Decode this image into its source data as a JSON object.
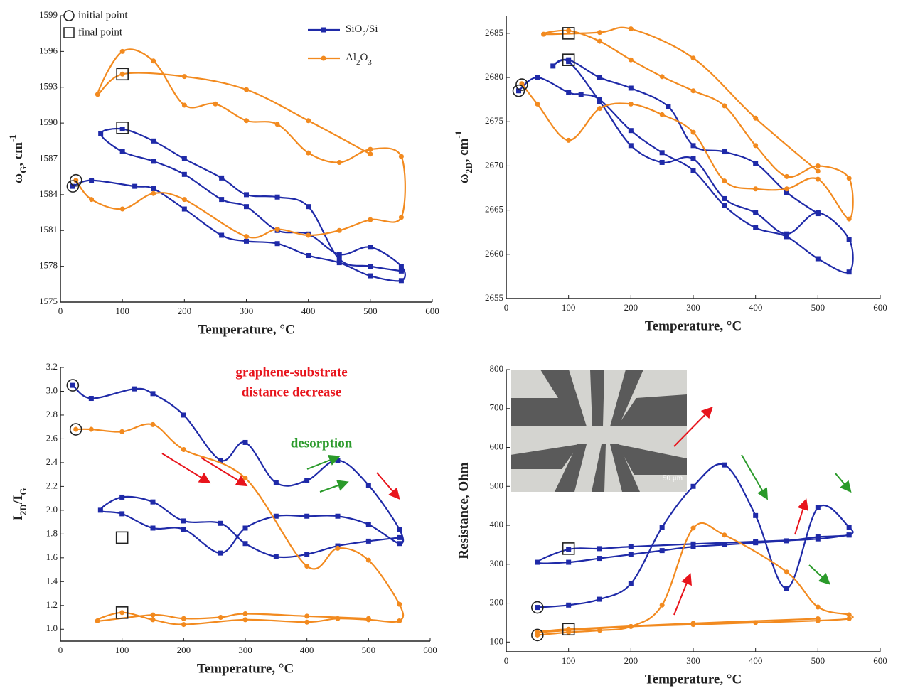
{
  "chart_data": [
    {
      "type": "line",
      "xlabel": "Temperature, °C",
      "ylabel": [
        "ω",
        "G",
        ", cm",
        "-1"
      ],
      "xlim": [
        0,
        600
      ],
      "xticks": [
        0,
        100,
        200,
        300,
        400,
        500,
        600
      ],
      "ylim": [
        1575,
        1599
      ],
      "yticks": [
        1575,
        1578,
        1581,
        1584,
        1587,
        1590,
        1593,
        1596,
        1599
      ],
      "initial_label": "initial point",
      "final_label": "final point",
      "initial_points": [
        {
          "x": 20,
          "y": 1584.7
        },
        {
          "x": 25,
          "y": 1585.2
        }
      ],
      "final_points": [
        {
          "x": 100,
          "y": 1589.6
        },
        {
          "x": 100,
          "y": 1594.1
        }
      ],
      "series": [
        {
          "name": "SiO2/Si",
          "color": "#1f2aa8",
          "x": [
            20,
            50,
            120,
            150,
            200,
            260,
            300,
            350,
            400,
            450,
            500,
            550,
            550,
            500,
            450,
            400,
            350,
            300,
            260,
            200,
            150,
            100,
            65,
            100,
            150,
            200,
            260,
            300,
            350,
            400,
            450,
            500,
            550
          ],
          "values": [
            1584.7,
            1585.2,
            1584.7,
            1584.5,
            1582.8,
            1580.6,
            1580.1,
            1579.9,
            1578.9,
            1578.3,
            1577.2,
            1576.8,
            1578,
            1579.6,
            1579,
            1580.7,
            1581,
            1583,
            1583.6,
            1585.7,
            1586.8,
            1587.6,
            1589.1,
            1589.5,
            1588.5,
            1587,
            1585.4,
            1584,
            1583.8,
            1583,
            1578.6,
            1578,
            1577.6
          ]
        },
        {
          "name": "Al2O3",
          "color": "#f28a1f",
          "x": [
            25,
            50,
            100,
            150,
            200,
            300,
            350,
            400,
            450,
            500,
            550,
            550,
            500,
            450,
            400,
            350,
            300,
            250,
            200,
            150,
            100,
            60,
            100,
            200,
            300,
            400,
            500
          ],
          "values": [
            1585.2,
            1583.6,
            1582.8,
            1584.1,
            1583.6,
            1580.5,
            1581.1,
            1580.6,
            1581,
            1581.9,
            1582.1,
            1587.2,
            1587.8,
            1586.7,
            1587.5,
            1589.9,
            1590.2,
            1591.6,
            1591.5,
            1595.2,
            1596,
            1592.4,
            1594.1,
            1593.9,
            1592.8,
            1590.2,
            1587.4
          ]
        }
      ]
    },
    {
      "type": "line",
      "xlabel": "Temperature, °C",
      "ylabel": [
        "ω",
        "2D",
        ", cm",
        "-1"
      ],
      "xlim": [
        0,
        600
      ],
      "xticks": [
        0,
        100,
        200,
        300,
        400,
        500,
        600
      ],
      "ylim": [
        2655,
        2687
      ],
      "yticks": [
        2655,
        2660,
        2665,
        2670,
        2675,
        2680,
        2685
      ],
      "initial_points": [
        {
          "x": 20,
          "y": 2678.5
        },
        {
          "x": 25,
          "y": 2679.2
        }
      ],
      "final_points": [
        {
          "x": 100,
          "y": 2682
        },
        {
          "x": 100,
          "y": 2685
        }
      ],
      "series": [
        {
          "name": "SiO2/Si",
          "color": "#1f2aa8",
          "x": [
            20,
            50,
            100,
            120,
            150,
            200,
            250,
            300,
            350,
            400,
            450,
            500,
            550,
            550,
            500,
            450,
            400,
            350,
            300,
            250,
            200,
            150,
            100,
            75,
            100,
            150,
            200,
            260,
            300,
            350,
            400,
            450,
            500
          ],
          "values": [
            2678.5,
            2680,
            2678.3,
            2678.1,
            2677.5,
            2674,
            2671.5,
            2669.5,
            2665.5,
            2663,
            2662,
            2659.5,
            2658,
            2661.7,
            2664.7,
            2662.3,
            2664.7,
            2666.3,
            2670.8,
            2670.4,
            2672.3,
            2677.3,
            2681.8,
            2681.3,
            2682,
            2680,
            2678.8,
            2676.7,
            2672.3,
            2671.6,
            2670.3,
            2667,
            2664.6
          ]
        },
        {
          "name": "Al2O3",
          "color": "#f28a1f",
          "x": [
            25,
            50,
            100,
            150,
            200,
            250,
            300,
            350,
            400,
            450,
            500,
            550,
            550,
            500,
            450,
            400,
            350,
            300,
            250,
            200,
            150,
            100,
            60,
            150,
            200,
            300,
            400,
            500
          ],
          "values": [
            2679.3,
            2677,
            2672.9,
            2676.5,
            2677,
            2675.8,
            2673.8,
            2668.3,
            2667.4,
            2667.4,
            2668.5,
            2664,
            2668.6,
            2670,
            2668.8,
            2672.3,
            2676.8,
            2678.5,
            2680.1,
            2682,
            2684.1,
            2685.3,
            2684.9,
            2685.1,
            2685.5,
            2682.2,
            2675.4,
            2669.4
          ]
        }
      ]
    },
    {
      "type": "line",
      "xlabel": "Temperature, °C",
      "ylabel": [
        "I",
        "2D",
        "/I",
        "G"
      ],
      "xlim": [
        0,
        600
      ],
      "xticks": [
        0,
        100,
        200,
        300,
        400,
        500,
        600
      ],
      "ylim": [
        0.9,
        3.2
      ],
      "yticks": [
        {
          "value": 1,
          "label": "1.0"
        },
        1.2,
        1.4,
        1.6,
        1.8,
        {
          "value": 2,
          "label": "2.0"
        },
        2.2,
        2.4,
        2.6,
        2.8,
        {
          "value": 3,
          "label": "3.0"
        },
        3.2
      ],
      "annotations": [
        {
          "text": "graphene-substrate",
          "color": "#e8141c"
        },
        {
          "text": "distance decrease",
          "color": "#e8141c"
        },
        {
          "text": "desorption",
          "color": "#2a9a2a"
        }
      ],
      "initial_points": [
        {
          "x": 20,
          "y": 3.05
        },
        {
          "x": 25,
          "y": 2.68
        }
      ],
      "final_points": [
        {
          "x": 100,
          "y": 1.77
        },
        {
          "x": 100,
          "y": 1.14
        }
      ],
      "series": [
        {
          "name": "SiO2/Si",
          "color": "#1f2aa8",
          "x": [
            20,
            50,
            120,
            150,
            200,
            260,
            300,
            350,
            400,
            450,
            500,
            550,
            550,
            500,
            450,
            400,
            350,
            300,
            260,
            200,
            150,
            100,
            65,
            100,
            150,
            200,
            260,
            300,
            350,
            400,
            450,
            500,
            550
          ],
          "values": [
            3.05,
            2.94,
            3.02,
            2.98,
            2.8,
            2.42,
            2.57,
            2.23,
            2.25,
            2.42,
            2.21,
            1.84,
            1.72,
            1.88,
            1.95,
            1.95,
            1.95,
            1.85,
            1.64,
            1.84,
            1.85,
            1.97,
            2,
            2.11,
            2.07,
            1.91,
            1.89,
            1.72,
            1.61,
            1.63,
            1.7,
            1.74,
            1.77
          ]
        },
        {
          "name": "Al2O3",
          "color": "#f28a1f",
          "x": [
            25,
            50,
            100,
            150,
            200,
            300,
            400,
            450,
            500,
            550,
            550,
            500,
            450,
            400,
            300,
            200,
            150,
            100,
            60,
            150,
            200,
            260,
            300,
            400,
            500
          ],
          "values": [
            2.68,
            2.68,
            2.66,
            2.72,
            2.51,
            2.27,
            1.53,
            1.68,
            1.58,
            1.21,
            1.07,
            1.08,
            1.09,
            1.06,
            1.08,
            1.04,
            1.08,
            1.14,
            1.07,
            1.12,
            1.09,
            1.1,
            1.13,
            1.11,
            1.09
          ]
        }
      ]
    },
    {
      "type": "line",
      "xlabel": "Temperature, °C",
      "ylabel": [
        "Resistance, Ohm"
      ],
      "xlim": [
        0,
        600
      ],
      "xticks": [
        0,
        100,
        200,
        300,
        400,
        500,
        600
      ],
      "ylim": [
        75,
        800
      ],
      "yticks": [
        100,
        200,
        300,
        400,
        500,
        600,
        700,
        800
      ],
      "inset_label": "50 μm",
      "initial_points": [
        {
          "x": 50,
          "y": 189
        },
        {
          "x": 50,
          "y": 118
        }
      ],
      "final_points": [
        {
          "x": 100,
          "y": 340
        },
        {
          "x": 100,
          "y": 133
        }
      ],
      "series": [
        {
          "name": "SiO2/Si",
          "color": "#1f2aa8",
          "x": [
            50,
            100,
            150,
            200,
            250,
            300,
            350,
            400,
            450,
            500,
            550,
            550,
            500,
            450,
            400,
            350,
            300,
            250,
            200,
            150,
            100,
            50,
            100,
            150,
            200,
            300,
            400,
            500,
            550
          ],
          "values": [
            189,
            195,
            210,
            250,
            395,
            500,
            555,
            425,
            238,
            445,
            395,
            375,
            370,
            360,
            355,
            350,
            345,
            335,
            325,
            315,
            305,
            305,
            338,
            340,
            345,
            352,
            358,
            365,
            375
          ]
        },
        {
          "name": "Al2O3",
          "color": "#f28a1f",
          "x": [
            50,
            100,
            150,
            200,
            250,
            300,
            350,
            450,
            500,
            550,
            550,
            500,
            400,
            300,
            200,
            100,
            50,
            100,
            300,
            500
          ],
          "values": [
            118,
            125,
            130,
            140,
            195,
            393,
            375,
            280,
            190,
            170,
            160,
            155,
            150,
            145,
            140,
            130,
            125,
            133,
            148,
            160
          ]
        }
      ]
    }
  ]
}
